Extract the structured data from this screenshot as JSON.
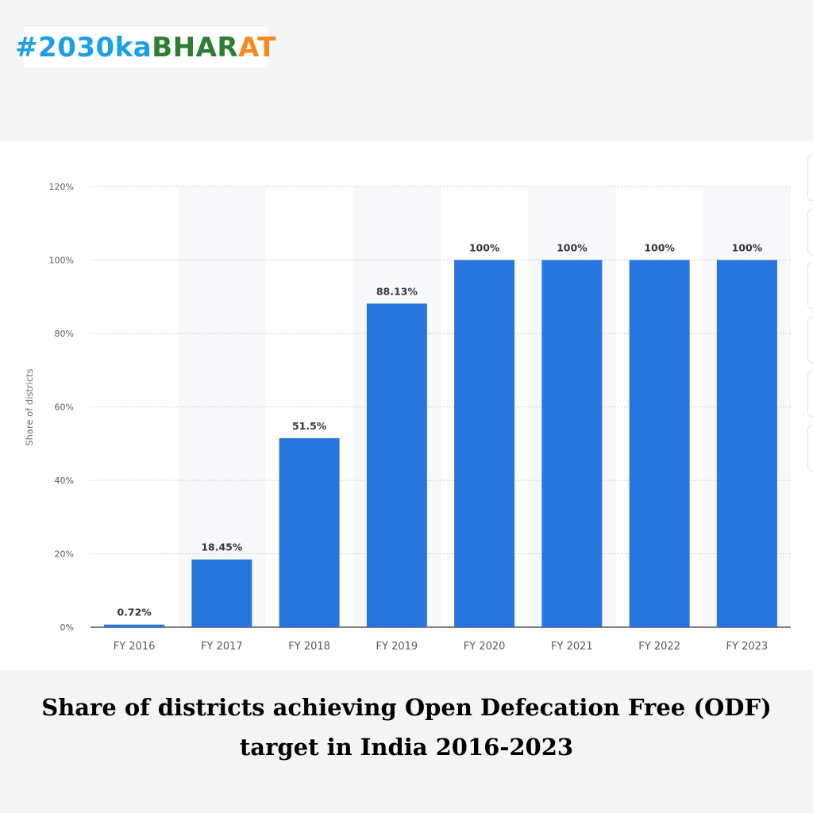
{
  "logo": {
    "hash": "#",
    "part1": "2030ka",
    "part2": "BHAR",
    "part3": "AT",
    "colors": {
      "blue": "#1ba1e2",
      "green": "#2e7d32",
      "orange": "#f58a1f"
    }
  },
  "caption": {
    "line1": "Share of districts achieving Open Defecation Free (ODF)",
    "line2": "target in India 2016-2023"
  },
  "chart_data": {
    "type": "bar",
    "title": "",
    "xlabel": "",
    "ylabel": "Share of districts",
    "categories": [
      "FY 2016",
      "FY 2017",
      "FY 2018",
      "FY 2019",
      "FY 2020",
      "FY 2021",
      "FY 2022",
      "FY 2023"
    ],
    "values": [
      0.72,
      18.45,
      51.5,
      88.13,
      100,
      100,
      100,
      100
    ],
    "data_labels": [
      "0.72%",
      "18.45%",
      "51.5%",
      "88.13%",
      "100%",
      "100%",
      "100%",
      "100%"
    ],
    "ylim": [
      0,
      120
    ],
    "yticks": [
      0,
      20,
      40,
      60,
      80,
      100,
      120
    ],
    "ytick_labels": [
      "0%",
      "20%",
      "40%",
      "60%",
      "80%",
      "100%",
      "120%"
    ],
    "grid": true,
    "bar_color": "#2876dd"
  }
}
